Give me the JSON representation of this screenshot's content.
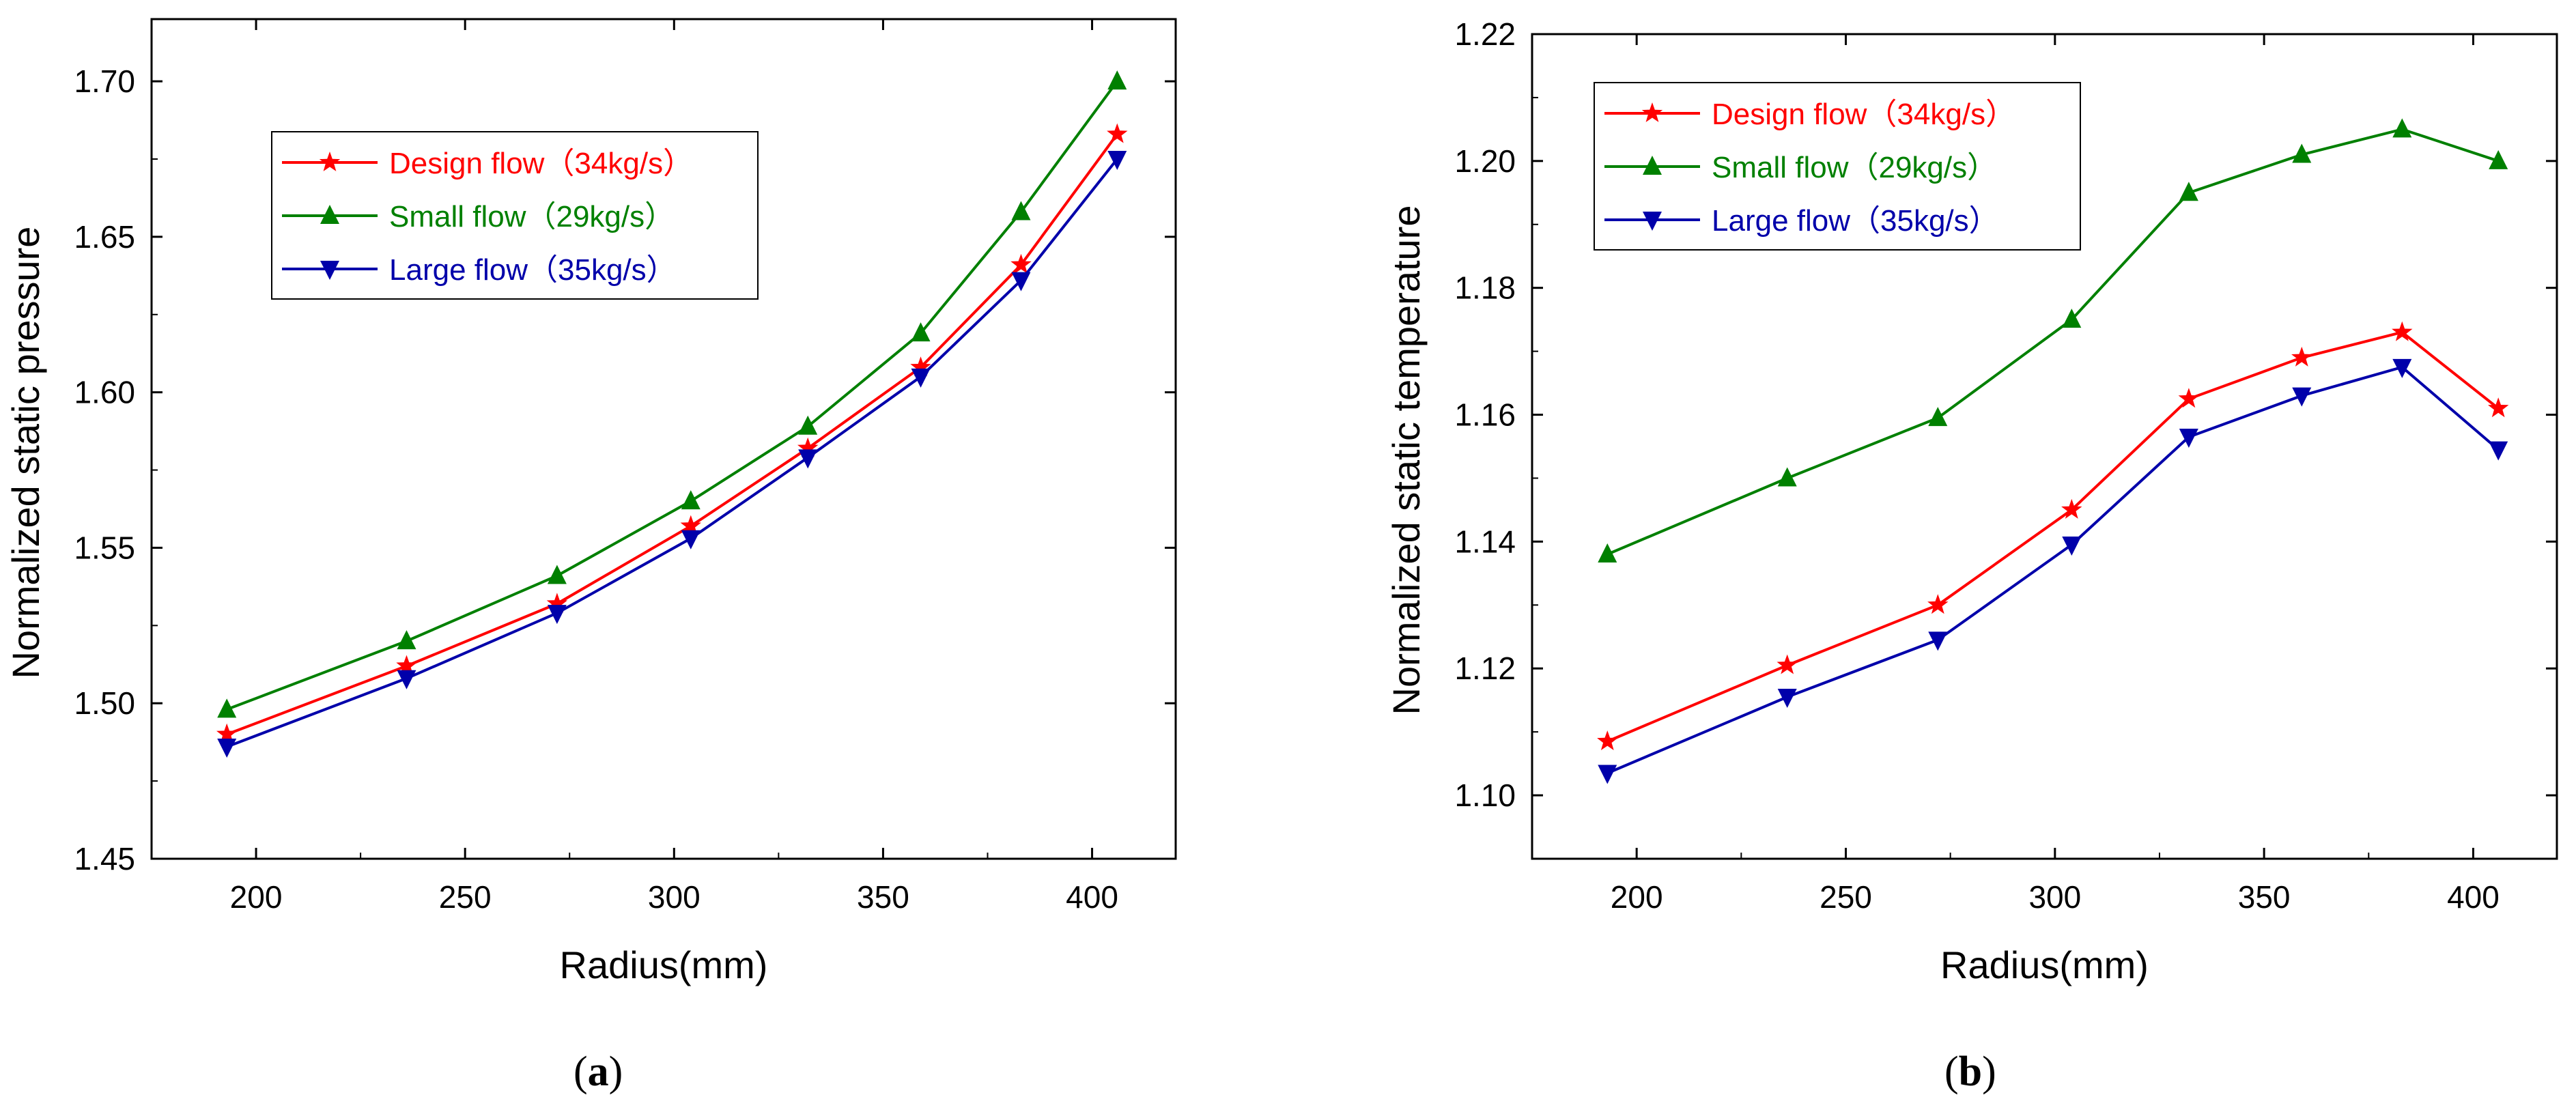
{
  "chart_data": [
    {
      "type": "line",
      "panel_label": "a",
      "xlabel": "Radius(mm)",
      "ylabel": "Normalized static pressure",
      "xlim": [
        175,
        420
      ],
      "ylim": [
        1.45,
        1.72
      ],
      "xticks": [
        200,
        250,
        300,
        350,
        400
      ],
      "yticks": [
        1.45,
        1.5,
        1.55,
        1.6,
        1.65,
        1.7
      ],
      "ytick_labels": [
        "1.45",
        "1.50",
        "1.55",
        "1.60",
        "1.65",
        "1.70"
      ],
      "legend_position": "top-left",
      "x": [
        193,
        236,
        272,
        304,
        332,
        359,
        383,
        406
      ],
      "series": [
        {
          "name": "Design flow（34kg/s）",
          "color": "#ff0000",
          "marker": "star",
          "values": [
            1.49,
            1.512,
            1.532,
            1.557,
            1.582,
            1.608,
            1.641,
            1.683
          ]
        },
        {
          "name": "Small flow（29kg/s）",
          "color": "#008000",
          "marker": "triangle-up",
          "values": [
            1.498,
            1.52,
            1.541,
            1.565,
            1.589,
            1.619,
            1.658,
            1.7
          ]
        },
        {
          "name": "Large flow（35kg/s）",
          "color": "#0000aa",
          "marker": "triangle-down",
          "values": [
            1.486,
            1.508,
            1.529,
            1.553,
            1.579,
            1.605,
            1.636,
            1.675
          ]
        }
      ]
    },
    {
      "type": "line",
      "panel_label": "b",
      "xlabel": "Radius(mm)",
      "ylabel": "Normalized static temperature",
      "xlim": [
        175,
        420
      ],
      "ylim": [
        1.09,
        1.22
      ],
      "xticks": [
        200,
        250,
        300,
        350,
        400
      ],
      "yticks": [
        1.1,
        1.12,
        1.14,
        1.16,
        1.18,
        1.2,
        1.22
      ],
      "ytick_labels": [
        "1.10",
        "1.12",
        "1.14",
        "1.16",
        "1.18",
        "1.20",
        "1.22"
      ],
      "legend_position": "top-left",
      "x": [
        193,
        236,
        272,
        304,
        332,
        359,
        383,
        406
      ],
      "series": [
        {
          "name": "Design flow（34kg/s）",
          "color": "#ff0000",
          "marker": "star",
          "values": [
            1.1085,
            1.1205,
            1.13,
            1.145,
            1.1625,
            1.169,
            1.173,
            1.161
          ]
        },
        {
          "name": "Small flow（29kg/s）",
          "color": "#008000",
          "marker": "triangle-up",
          "values": [
            1.138,
            1.15,
            1.1595,
            1.175,
            1.195,
            1.201,
            1.205,
            1.2
          ]
        },
        {
          "name": "Large flow（35kg/s）",
          "color": "#0000aa",
          "marker": "triangle-down",
          "values": [
            1.1035,
            1.1155,
            1.1245,
            1.1395,
            1.1565,
            1.163,
            1.1675,
            1.1545
          ]
        }
      ]
    }
  ]
}
